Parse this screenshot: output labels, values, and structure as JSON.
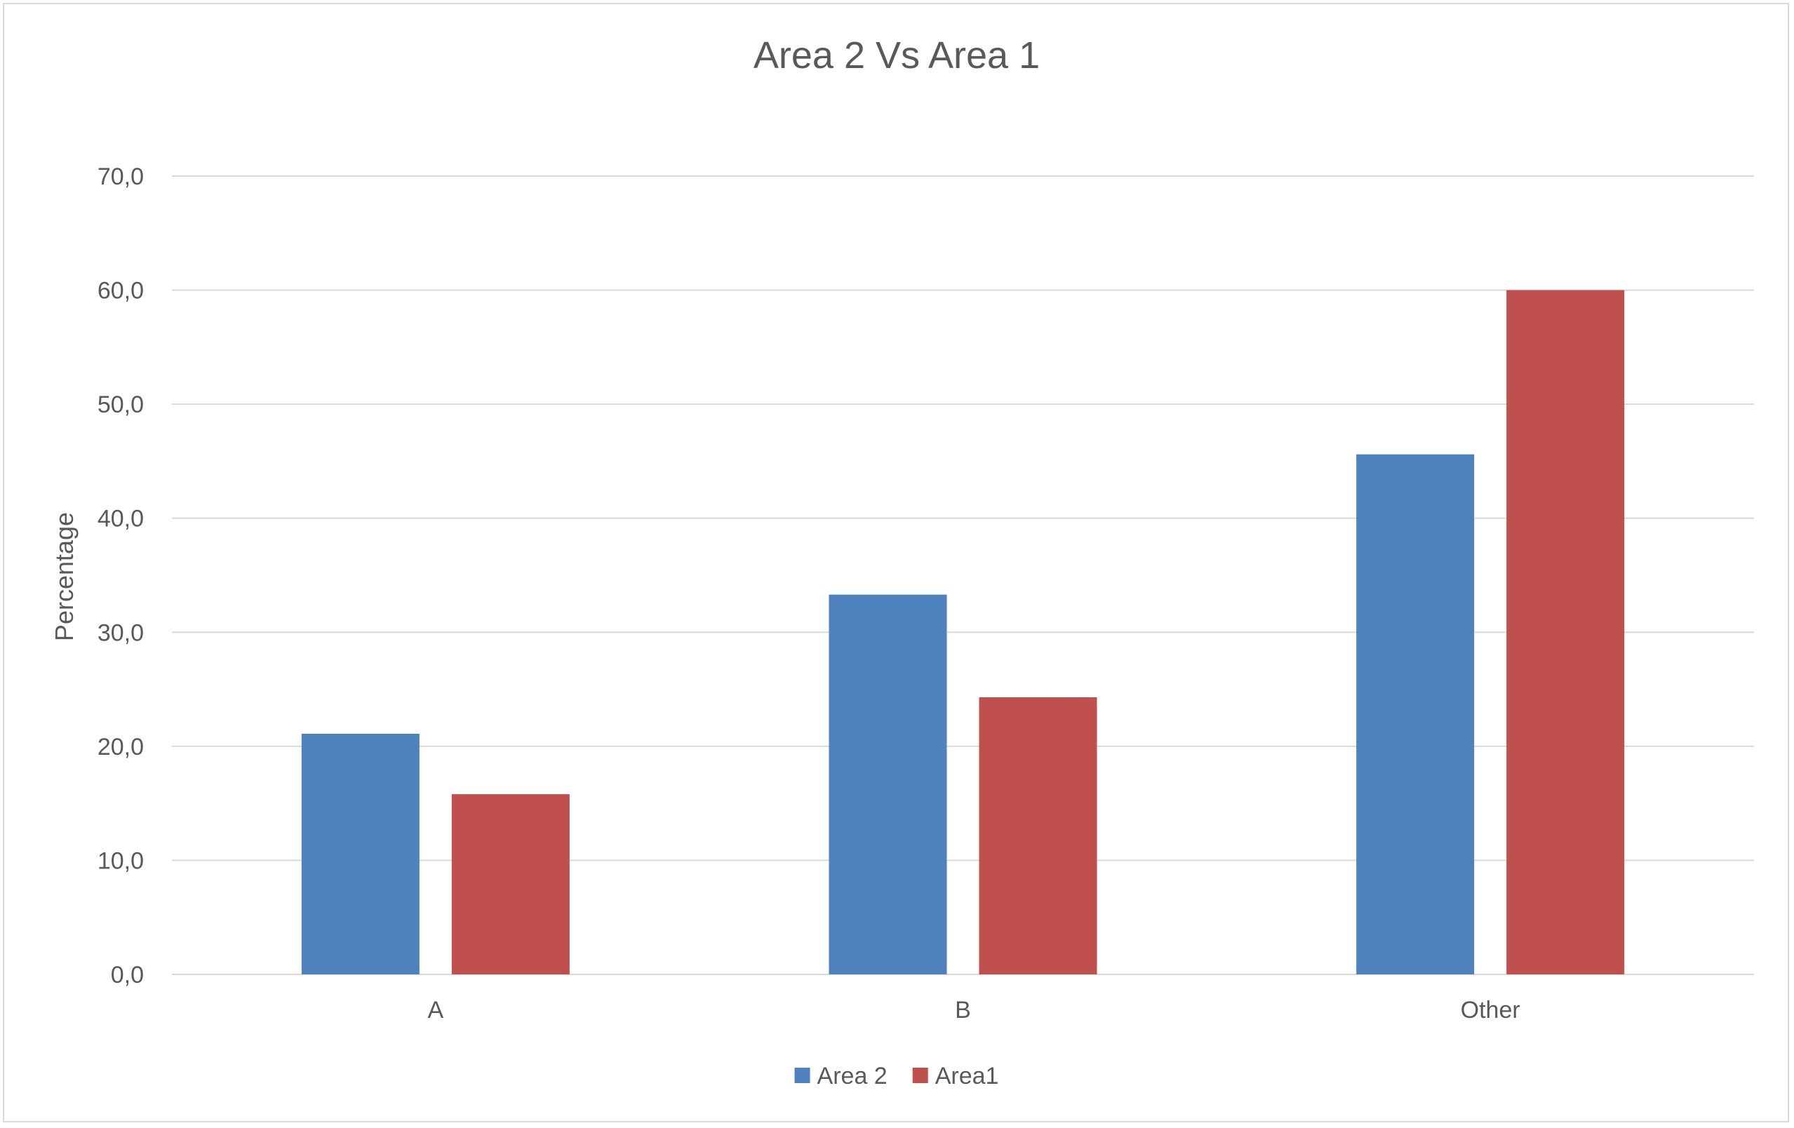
{
  "chart_data": {
    "type": "bar",
    "title": "Area 2 Vs Area 1",
    "xlabel": "",
    "ylabel": "Percentage",
    "categories": [
      "A",
      "B",
      "Other"
    ],
    "series": [
      {
        "name": "Area 2",
        "values": [
          21.1,
          33.3,
          45.6
        ],
        "color": "#4f81bd"
      },
      {
        "name": "Area1",
        "values": [
          15.8,
          24.3,
          60.0
        ],
        "color": "#c0504d"
      }
    ],
    "ylim": [
      0,
      70
    ],
    "yticks": [
      "0,0",
      "10,0",
      "20,0",
      "30,0",
      "40,0",
      "50,0",
      "60,0",
      "70,0"
    ],
    "grid": true,
    "legend_position": "bottom",
    "colors": {
      "gridline": "#d9d9d9",
      "text": "#595959",
      "frame": "#d9d9d9"
    }
  }
}
